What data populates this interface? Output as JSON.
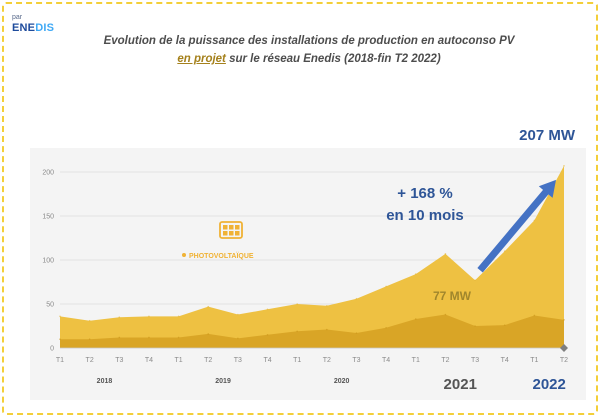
{
  "logo": {
    "small_text": "par",
    "brand_main": "ENE",
    "brand_accent": "DIS"
  },
  "header": {
    "title_line1": "Evolution de la puissance des installations de production en autoconso PV",
    "title_em": "en projet",
    "title_rest": " sur le réseau Enedis (2018-fin T2 2022)"
  },
  "colors": {
    "area_total": "#eec142",
    "area_lower": "#d9a526",
    "arrow": "#4472c4",
    "annotation_blue": "#2e5597",
    "annotation_gold": "#a0862c",
    "legend_gold": "#f0b235"
  },
  "legend": {
    "label": "PHOTOVOLTAÏQUE",
    "icon": "solar-panel-icon"
  },
  "chart_data": {
    "type": "area",
    "ylim": [
      0,
      230
    ],
    "yticks": [
      0,
      50,
      100,
      150,
      200
    ],
    "categories": [
      "T1",
      "T2",
      "T3",
      "T4",
      "T1",
      "T2",
      "T3",
      "T4",
      "T1",
      "T2",
      "T3",
      "T4",
      "T1",
      "T2",
      "T3",
      "T4",
      "T1",
      "T2"
    ],
    "series": [
      {
        "values": [
          36,
          31,
          35,
          36,
          36,
          47,
          38,
          44,
          50,
          48,
          56,
          70,
          84,
          107,
          77,
          110,
          145,
          207
        ]
      },
      {
        "values": [
          10,
          10,
          12,
          12,
          12,
          16,
          11,
          15,
          19,
          21,
          17,
          23,
          33,
          38,
          25,
          26,
          37,
          32
        ]
      }
    ],
    "years": [
      {
        "label": "2018",
        "start": 0,
        "end": 3,
        "big": false
      },
      {
        "label": "2019",
        "start": 4,
        "end": 7,
        "big": false
      },
      {
        "label": "2020",
        "start": 8,
        "end": 11,
        "big": false
      },
      {
        "label": "2021",
        "start": 12,
        "end": 15,
        "big": true,
        "color": "#555555"
      },
      {
        "label": "2022",
        "start": 16,
        "end": 17,
        "big": true,
        "color": "#2e5597"
      }
    ],
    "annotations": {
      "end_value": "207 MW",
      "start_value": "77 MW",
      "growth_line1": "+ 168 %",
      "growth_line2": "en 10 mois"
    }
  }
}
